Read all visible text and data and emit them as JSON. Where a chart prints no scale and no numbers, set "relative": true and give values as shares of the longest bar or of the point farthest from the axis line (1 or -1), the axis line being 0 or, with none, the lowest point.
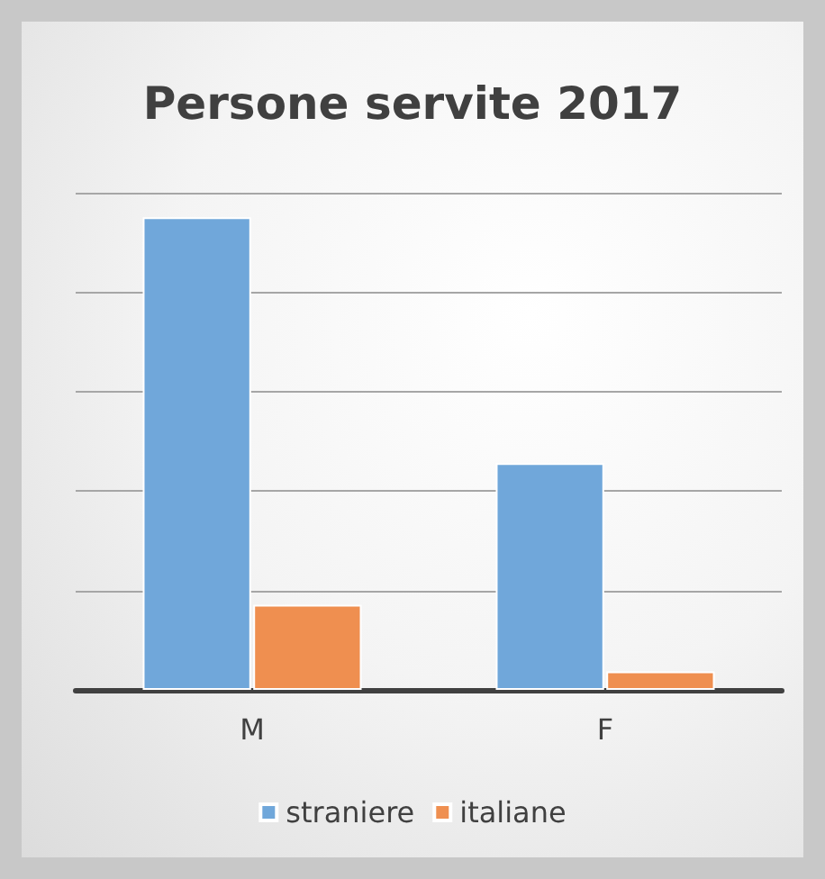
{
  "chart_data": {
    "type": "bar",
    "title": "Persone servite 2017",
    "categories": [
      "M",
      "F"
    ],
    "relative": true,
    "grid": "y",
    "legend": "bottom",
    "series": [
      {
        "name": "straniere",
        "color": "#70a7da",
        "values": [
          1,
          0.48
        ]
      },
      {
        "name": "italiane",
        "color": "#ef8f50",
        "values": [
          0.18,
          0.039
        ]
      }
    ]
  }
}
